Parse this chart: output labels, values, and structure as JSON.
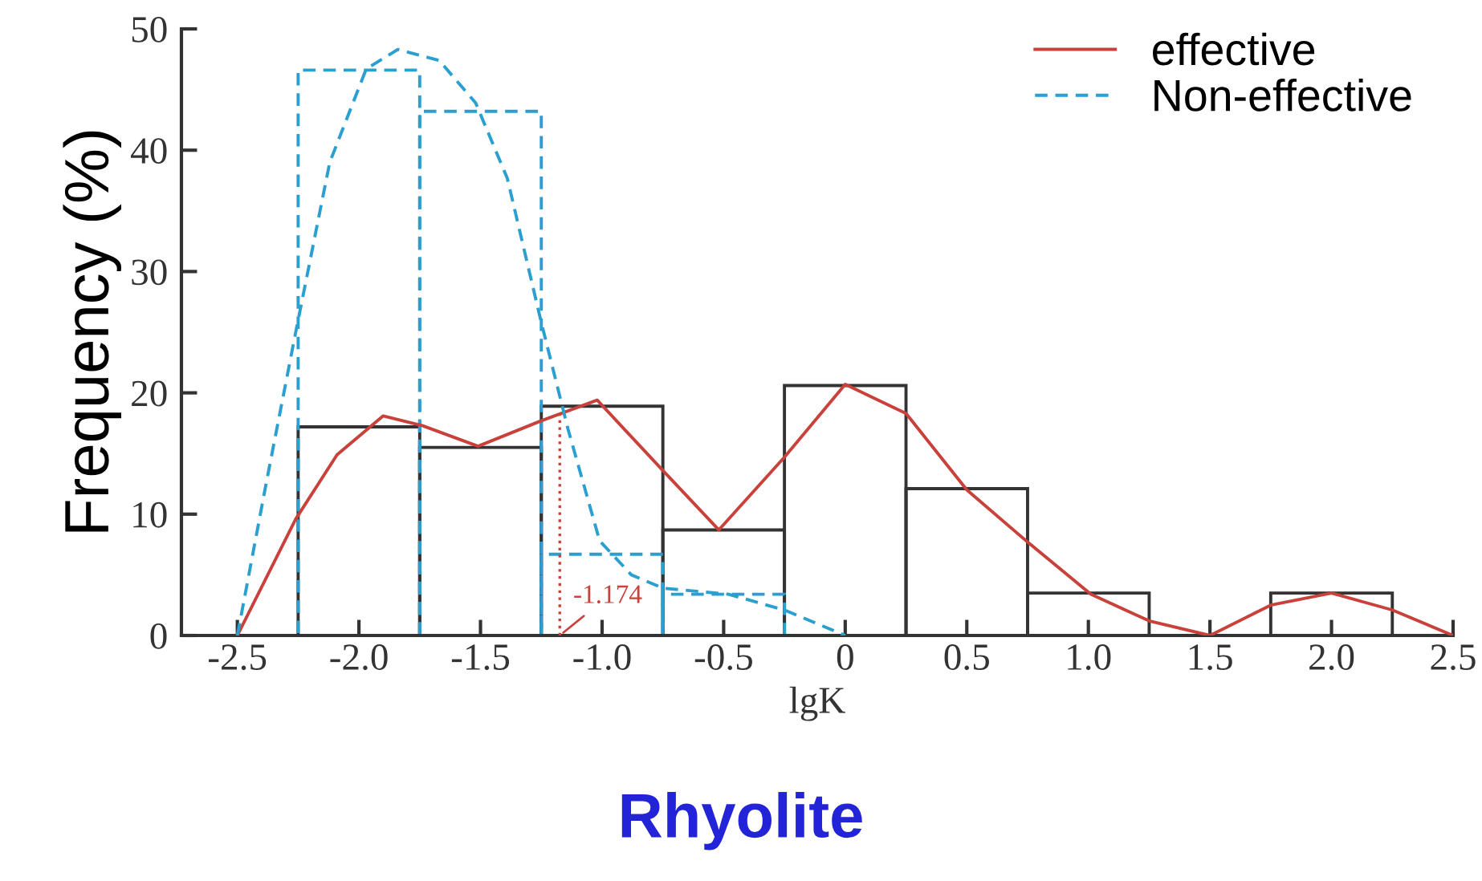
{
  "chart_data": {
    "type": "histogram",
    "title": "Rhyolite",
    "xlabel": "lgK",
    "ylabel": "Frequency (%)",
    "bins": [
      -2.25,
      -1.75,
      -1.25,
      -0.75,
      -0.25,
      0.25,
      0.75,
      1.25,
      1.75,
      2.25
    ],
    "series": [
      {
        "color": "#333333",
        "line_style": "solid",
        "values": [
          17.2,
          15.5,
          18.9,
          8.7,
          20.6,
          12.1,
          3.5,
          0,
          3.5
        ]
      },
      {
        "color": "#2a9fd0",
        "line_style": "dashed",
        "values": [
          46.6,
          43.2,
          6.7,
          3.4,
          0,
          0,
          0,
          0,
          0
        ]
      },
      {
        "type": "line",
        "name": "effective",
        "color": "#c8413a",
        "line_style": "solid",
        "x": [
          -2.5,
          -2.26,
          -2.09,
          -1.9,
          -1.74,
          -1.51,
          -1.25,
          -1.02,
          -0.75,
          -0.52,
          -0.25,
          0.0,
          0.25,
          0.5,
          0.75,
          1.01,
          1.25,
          1.5,
          1.75,
          2.0,
          2.25,
          2.5
        ],
        "values": [
          0,
          9.6,
          14.9,
          18.1,
          17.3,
          15.6,
          17.7,
          19.4,
          13.6,
          8.7,
          14.7,
          20.7,
          18.3,
          12.0,
          7.7,
          3.4,
          1.2,
          0,
          2.5,
          3.5,
          2.1,
          0
        ]
      },
      {
        "type": "line",
        "name": "Non-effective",
        "color": "#2a9fd0",
        "line_style": "dashed",
        "x": [
          -2.5,
          -2.38,
          -2.26,
          -2.12,
          -1.97,
          -1.84,
          -1.67,
          -1.52,
          -1.39,
          -1.25,
          -1.14,
          -1.01,
          -0.88,
          -0.75,
          -0.48,
          -0.25,
          0
        ],
        "values": [
          0,
          12.7,
          25,
          39,
          46.7,
          48.3,
          47.4,
          43.9,
          37.7,
          25.8,
          17.0,
          7.8,
          5.0,
          3.9,
          3.4,
          2.1,
          0
        ]
      }
    ],
    "ref_lines": [
      {
        "axis": "x",
        "value": -1.174,
        "label": "-1.174",
        "color": "#c8413a",
        "line_style": "dotted"
      }
    ],
    "xlim": [
      -2.73,
      2.5
    ],
    "ylim": [
      0,
      50
    ],
    "xticks": [
      -2.5,
      {
        "value": -2.0,
        "label": "-2.0"
      },
      -1.5,
      {
        "value": -1.0,
        "label": "-1.0"
      },
      -0.5,
      0,
      0.5,
      {
        "value": 1.0,
        "label": "1.0"
      },
      1.5,
      {
        "value": 2.0,
        "label": "2.0"
      },
      2.5
    ],
    "yticks": [
      0,
      10,
      20,
      30,
      40,
      50
    ],
    "grid": false,
    "legend": "top right"
  }
}
